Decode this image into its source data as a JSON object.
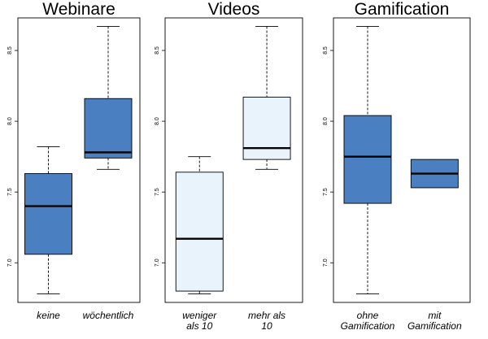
{
  "chart_data": [
    {
      "type": "boxplot",
      "title": "Webinare",
      "ylim": [
        6.72,
        8.73
      ],
      "yticks": [
        "7.0",
        "7.5",
        "8.0",
        "8.5"
      ],
      "categories": [
        [
          "keine"
        ],
        [
          "wöchentlich"
        ]
      ],
      "boxes": [
        {
          "min": 6.78,
          "q1": 7.06,
          "median": 7.4,
          "q3": 7.63,
          "max": 7.82,
          "color": "#4a7fc1"
        },
        {
          "min": 7.66,
          "q1": 7.74,
          "median": 7.78,
          "q3": 8.16,
          "max": 8.67,
          "color": "#4a7fc1"
        }
      ]
    },
    {
      "type": "boxplot",
      "title": "Videos",
      "ylim": [
        6.72,
        8.73
      ],
      "yticks": [
        "7.0",
        "7.5",
        "8.0",
        "8.5"
      ],
      "categories": [
        [
          "weniger",
          "als 10"
        ],
        [
          "mehr als",
          "10"
        ]
      ],
      "boxes": [
        {
          "min": 6.78,
          "q1": 6.8,
          "median": 7.17,
          "q3": 7.64,
          "max": 7.75,
          "color": "#e9f3fc"
        },
        {
          "min": 7.66,
          "q1": 7.73,
          "median": 7.81,
          "q3": 8.17,
          "max": 8.67,
          "color": "#e9f3fc"
        }
      ]
    },
    {
      "type": "boxplot",
      "title": "Gamification",
      "ylim": [
        6.72,
        8.73
      ],
      "yticks": [
        "7.0",
        "7.5",
        "8.0",
        "8.5"
      ],
      "categories": [
        [
          "ohne",
          "Gamification"
        ],
        [
          "mit",
          "Gamification"
        ]
      ],
      "boxes": [
        {
          "min": 6.78,
          "q1": 7.42,
          "median": 7.75,
          "q3": 8.04,
          "max": 8.67,
          "color": "#4a7fc1"
        },
        {
          "min": 7.53,
          "q1": 7.53,
          "median": 7.63,
          "q3": 7.73,
          "max": 7.73,
          "color": "#4a7fc1"
        }
      ]
    }
  ]
}
